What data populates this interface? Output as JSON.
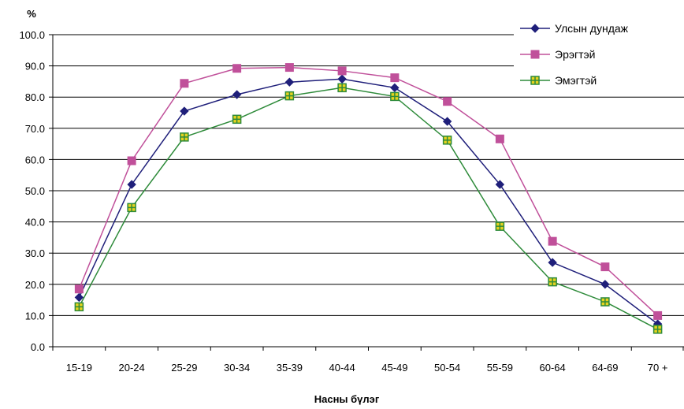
{
  "chart_data": {
    "type": "line",
    "ylabel": "%",
    "xlabel": "Насны бүлэг",
    "ylim": [
      0,
      100
    ],
    "ytick_step": 10,
    "ytick_labels": [
      "0.0",
      "10.0",
      "20.0",
      "30.0",
      "40.0",
      "50.0",
      "60.0",
      "70.0",
      "80.0",
      "90.0",
      "100.0"
    ],
    "categories": [
      "15-19",
      "20-24",
      "25-29",
      "30-34",
      "35-39",
      "40-44",
      "45-49",
      "50-54",
      "55-59",
      "60-64",
      "64-69",
      "70 +"
    ],
    "grid": "horizontal",
    "legend_position": "top-right",
    "series": [
      {
        "name": "Улсын дундаж",
        "color": "#1F1F7A",
        "marker": "diamond",
        "values": [
          15.8,
          52.0,
          75.5,
          80.8,
          84.8,
          85.8,
          83.0,
          72.2,
          52.0,
          27.0,
          20.0,
          7.3
        ]
      },
      {
        "name": "Эрэгтэй",
        "color": "#C0509A",
        "marker": "square",
        "values": [
          18.5,
          59.6,
          84.4,
          89.2,
          89.5,
          88.4,
          86.2,
          78.6,
          66.6,
          33.8,
          25.6,
          10.0
        ]
      },
      {
        "name": "Эмэгтэй",
        "color": "#2E8B3A",
        "marker": "square-cross",
        "marker_fill": "#E6D21E",
        "values": [
          12.8,
          44.6,
          67.2,
          72.9,
          80.4,
          83.0,
          80.2,
          66.2,
          38.6,
          20.8,
          14.4,
          5.6
        ]
      }
    ]
  }
}
